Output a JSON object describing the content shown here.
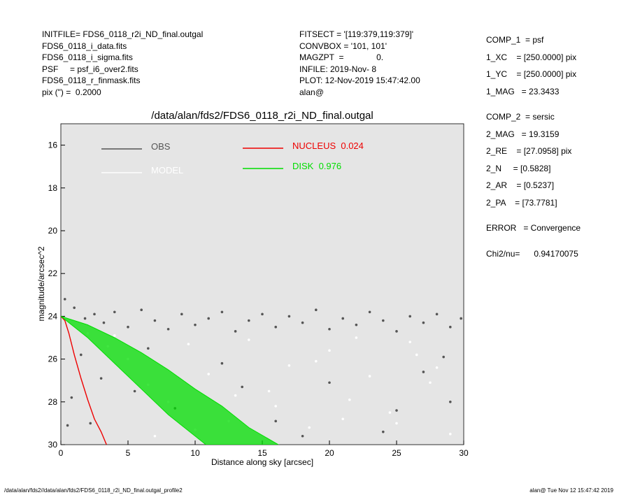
{
  "info_left": [
    "INITFILE= FDS6_0118_r2i_ND_final.outgal",
    "FDS6_0118_i_data.fits",
    "FDS6_0118_i_sigma.fits",
    "PSF     = psf_i6_over2.fits",
    "FDS6_0118_r_finmask.fits",
    "pix (\") =  0.2000"
  ],
  "info_middle": [
    "FITSECT = '[119:379,119:379]'",
    "CONVBOX = '101, 101'",
    "MAGZPT  =              0.",
    "INFILE: 2019-Nov- 8",
    "PLOT: 12-Nov-2019 15:47:42.00",
    "alan@"
  ],
  "info_right": [
    "COMP_1  = psf",
    "1_XC    = [250.0000] pix",
    "1_YC    = [250.0000] pix",
    "1_MAG   = 23.3433",
    "COMP_2  = sersic",
    "2_MAG   = 19.3159",
    "2_RE    = [27.0958] pix",
    "2_N     = [0.5828]",
    "2_AR    = [0.5237]",
    "2_PA    = [73.7781]",
    "ERROR   = Convergence",
    "Chi2/nu=      0.94170075"
  ],
  "footer_left": "/data/alan/fds2//data/alan/fds2/FDS6_0118_r2i_ND_final.outgal_profile2",
  "footer_right": "alan@  Tue Nov 12 15:47:42 2019",
  "chart_data": {
    "type": "scatter",
    "title": "/data/alan/fds2/FDS6_0118_r2i_ND_final.outgal",
    "xlabel": "Distance along sky [arcsec]",
    "ylabel": "magnitude/arcsec^2",
    "xlim": [
      0,
      30
    ],
    "xticks": [
      0,
      5,
      10,
      15,
      20,
      25,
      30
    ],
    "ylim": [
      30,
      15
    ],
    "yticks": [
      16,
      18,
      20,
      22,
      24,
      26,
      28,
      30
    ],
    "background": "#e5e5e5",
    "series": [
      {
        "name": "OBS",
        "color": "#555555",
        "kind": "points",
        "x": [
          0.3,
          1,
          1.8,
          2.5,
          3.2,
          4,
          5,
          6,
          7,
          8,
          9,
          10,
          11,
          12,
          13,
          14,
          15,
          16,
          17,
          18,
          19,
          20,
          21,
          22,
          23,
          24,
          25,
          26,
          27,
          28,
          29,
          29.8,
          1.5,
          3,
          5.5,
          8.5,
          12,
          16,
          20,
          24,
          27,
          29,
          0.8,
          2.2,
          6.5,
          18,
          25,
          28.5,
          0.5,
          13.5
        ],
        "values": [
          23.2,
          23.6,
          24.1,
          23.9,
          24.3,
          23.8,
          24.5,
          23.7,
          24.2,
          24.6,
          23.9,
          24.4,
          24.1,
          23.8,
          24.7,
          24.2,
          23.9,
          24.5,
          24.0,
          24.3,
          23.7,
          24.6,
          24.1,
          24.4,
          23.8,
          24.2,
          24.7,
          24.0,
          24.3,
          23.9,
          24.5,
          24.1,
          25.8,
          26.9,
          27.5,
          28.3,
          26.2,
          28.9,
          27.1,
          29.4,
          26.6,
          28.0,
          27.8,
          29.0,
          25.5,
          29.6,
          28.4,
          25.9,
          29.1,
          27.3
        ]
      },
      {
        "name": "MODEL",
        "color": "#ffffff",
        "kind": "points",
        "x": [
          2,
          3.5,
          5,
          6.5,
          8,
          9.5,
          11,
          12.5,
          14,
          15.5,
          17,
          18.5,
          20,
          21.5,
          23,
          24.5,
          26,
          27.5,
          29,
          4,
          10,
          16,
          19,
          22,
          25,
          28,
          13,
          7,
          21,
          26.5
        ],
        "values": [
          24.8,
          25.4,
          26.0,
          27.2,
          28.0,
          25.3,
          26.7,
          28.9,
          25.1,
          27.5,
          26.3,
          29.2,
          25.6,
          27.9,
          26.8,
          28.5,
          25.2,
          27.1,
          29.5,
          24.9,
          29.3,
          28.2,
          26.1,
          25.0,
          29.0,
          26.4,
          27.7,
          29.6,
          28.8,
          25.8
        ]
      },
      {
        "name": "NUCLEUS  0.024",
        "color": "#ee0000",
        "kind": "line",
        "x": [
          0,
          0.3,
          0.6,
          1,
          1.5,
          2,
          2.5,
          3,
          3.4
        ],
        "values": [
          24,
          24.2,
          24.8,
          25.8,
          26.9,
          27.9,
          28.8,
          29.4,
          30
        ]
      },
      {
        "name": "DISK  0.976",
        "color": "#00dd00",
        "kind": "band",
        "x": [
          0,
          2,
          4,
          6,
          8,
          10,
          12,
          14,
          16.2
        ],
        "values": [
          24,
          24.4,
          25,
          25.7,
          26.5,
          27.4,
          28.2,
          29.2,
          30
        ],
        "x_low": [
          0,
          2,
          4,
          6,
          8,
          10,
          10.8
        ],
        "values_low": [
          24,
          25,
          26.2,
          27.4,
          28.6,
          29.6,
          30
        ]
      }
    ]
  }
}
